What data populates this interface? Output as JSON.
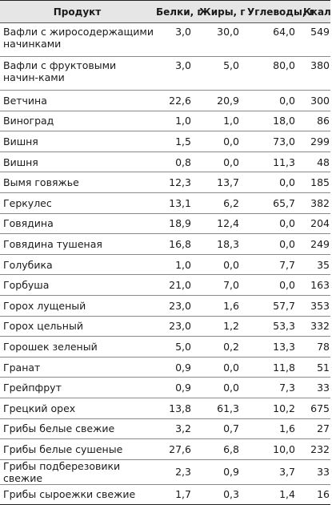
{
  "table": {
    "headers": {
      "name": "Продукт",
      "protein": "Белки, г",
      "fat": "Жиры, г",
      "carbs": "Углеводы, г",
      "kcal": "Ккал"
    },
    "rows": [
      {
        "name": "Вафли с жиросодержащими начинками",
        "protein": "3,0",
        "fat": "30,0",
        "carbs": "64,0",
        "kcal": "549"
      },
      {
        "name": "Вафли с фруктовыми начин-ками",
        "protein": "3,0",
        "fat": "5,0",
        "carbs": "80,0",
        "kcal": "380"
      },
      {
        "name": "Ветчина",
        "protein": "22,6",
        "fat": "20,9",
        "carbs": "0,0",
        "kcal": "300"
      },
      {
        "name": "Виноград",
        "protein": "1,0",
        "fat": "1,0",
        "carbs": "18,0",
        "kcal": "86"
      },
      {
        "name": "Вишня",
        "protein": "1,5",
        "fat": "0,0",
        "carbs": "73,0",
        "kcal": "299"
      },
      {
        "name": "Вишня",
        "protein": "0,8",
        "fat": "0,0",
        "carbs": "11,3",
        "kcal": "48"
      },
      {
        "name": "Вымя говяжье",
        "protein": "12,3",
        "fat": "13,7",
        "carbs": "0,0",
        "kcal": "185"
      },
      {
        "name": "Геркулес",
        "protein": "13,1",
        "fat": "6,2",
        "carbs": "65,7",
        "kcal": "382"
      },
      {
        "name": "Говядина",
        "protein": "18,9",
        "fat": "12,4",
        "carbs": "0,0",
        "kcal": "204"
      },
      {
        "name": "Говядина тушеная",
        "protein": "16,8",
        "fat": "18,3",
        "carbs": "0,0",
        "kcal": "249"
      },
      {
        "name": "Голубика",
        "protein": "1,0",
        "fat": "0,0",
        "carbs": "7,7",
        "kcal": "35"
      },
      {
        "name": "Горбуша",
        "protein": "21,0",
        "fat": "7,0",
        "carbs": "0,0",
        "kcal": "163"
      },
      {
        "name": "Горох лущеный",
        "protein": "23,0",
        "fat": "1,6",
        "carbs": "57,7",
        "kcal": "353"
      },
      {
        "name": "Горох цельный",
        "protein": "23,0",
        "fat": "1,2",
        "carbs": "53,3",
        "kcal": "332"
      },
      {
        "name": "Горошек зеленый",
        "protein": "5,0",
        "fat": "0,2",
        "carbs": "13,3",
        "kcal": "78"
      },
      {
        "name": "Гранат",
        "protein": "0,9",
        "fat": "0,0",
        "carbs": "11,8",
        "kcal": "51"
      },
      {
        "name": "Грейпфрут",
        "protein": "0,9",
        "fat": "0,0",
        "carbs": "7,3",
        "kcal": "33"
      },
      {
        "name": "Грецкий орех",
        "protein": "13,8",
        "fat": "61,3",
        "carbs": "10,2",
        "kcal": "675"
      },
      {
        "name": "Грибы белые свежие",
        "protein": "3,2",
        "fat": "0,7",
        "carbs": "1,6",
        "kcal": "27"
      },
      {
        "name": "Грибы белые сушеные",
        "protein": "27,6",
        "fat": "6,8",
        "carbs": "10,0",
        "kcal": "232"
      },
      {
        "name": "Грибы подберезовики свежие",
        "protein": "2,3",
        "fat": "0,9",
        "carbs": "3,7",
        "kcal": "33"
      },
      {
        "name": "Грибы сыроежки свежие",
        "protein": "1,7",
        "fat": "0,3",
        "carbs": "1,4",
        "kcal": "16"
      }
    ]
  }
}
